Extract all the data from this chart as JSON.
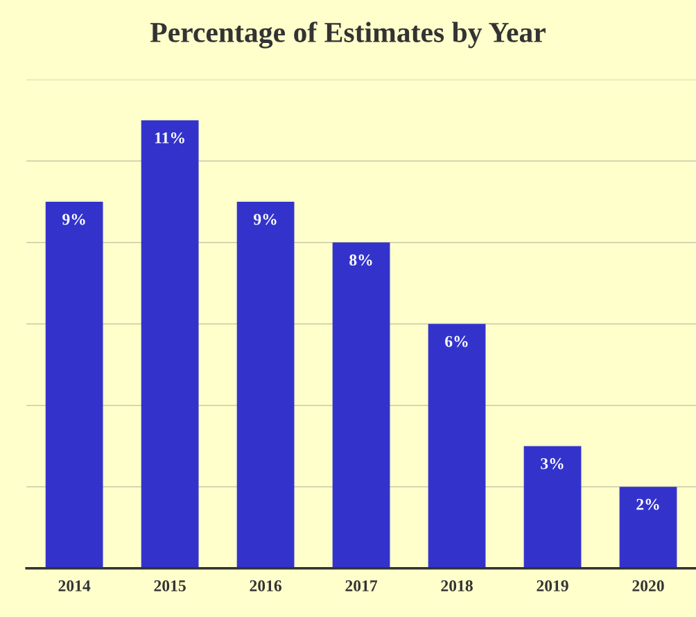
{
  "chart_data": {
    "type": "bar",
    "title": "Percentage of Estimates by Year",
    "categories": [
      "2014",
      "2015",
      "2016",
      "2017",
      "2018",
      "2019",
      "2020"
    ],
    "values": [
      9,
      11,
      9,
      8,
      6,
      3,
      2
    ],
    "value_labels": [
      "9%",
      "11%",
      "9%",
      "8%",
      "6%",
      "3%",
      "2%"
    ],
    "color": "#3333cc",
    "ylim": [
      0,
      12
    ],
    "yticks": [
      {
        "value": 0,
        "label": null
      },
      {
        "value": 2,
        "label": null
      },
      {
        "value": 4,
        "label": null
      },
      {
        "value": 6,
        "label": null
      },
      {
        "value": 8,
        "label": null
      },
      {
        "value": 10,
        "label": null
      },
      {
        "value": 12,
        "label": null
      }
    ],
    "tick_labels": "x",
    "grid": "y"
  }
}
